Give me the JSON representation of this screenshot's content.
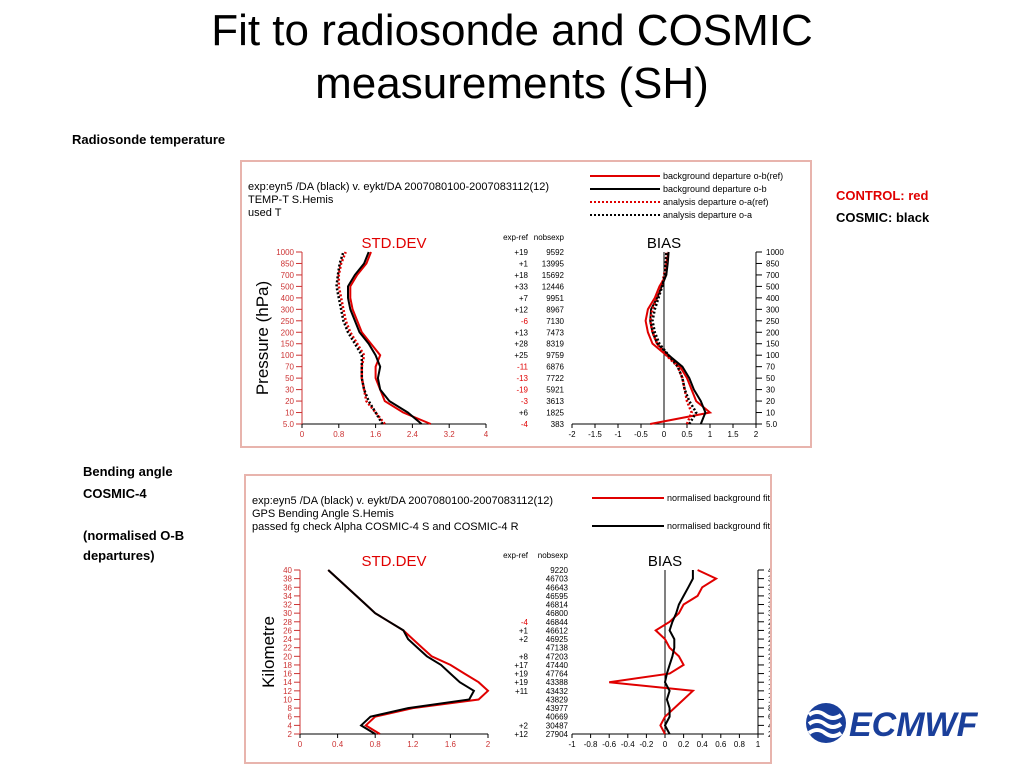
{
  "slide": {
    "title_line1": "Fit to radiosonde and COSMIC",
    "title_line2": "measurements (SH)",
    "radiosonde_label": "Radiosonde temperature",
    "bending_label_1": "Bending angle",
    "bending_label_2": "COSMIC-4",
    "bending_note_1": "(normalised O-B",
    "bending_note_2": "departures)",
    "control_label": "CONTROL: red",
    "cosmic_label": "COSMIC: black",
    "logo_text": "ECMWF",
    "colors": {
      "control": "#e00000",
      "cosmic": "#000000",
      "frame": "#e8b4ad"
    }
  },
  "chart_data": [
    {
      "type": "line",
      "header": [
        "exp:eyn5 /DA (black)  v. eykt/DA 2007080100-2007083112(12)",
        "TEMP-T  S.Hemis",
        "used T"
      ],
      "legend": [
        {
          "label": "background departure o-b(ref)",
          "color": "#e00000",
          "style": "solid"
        },
        {
          "label": "background departure o-b",
          "color": "#000000",
          "style": "solid"
        },
        {
          "label": "analysis departure o-a(ref)",
          "color": "#e00000",
          "style": "dotted"
        },
        {
          "label": "analysis departure o-a",
          "color": "#000000",
          "style": "dotted"
        }
      ],
      "ylabel": "Pressure (hPa)",
      "y_levels": [
        "5.0",
        "10",
        "20",
        "30",
        "50",
        "70",
        "100",
        "150",
        "200",
        "250",
        "300",
        "400",
        "500",
        "700",
        "850",
        "1000"
      ],
      "table_headers": [
        "exp-ref",
        "nobsexp"
      ],
      "exp_ref": [
        "-4",
        "+6",
        "-3",
        "-19",
        "-13",
        "-11",
        "+25",
        "+28",
        "+13",
        "-6",
        "+12",
        "+7",
        "+33",
        "+18",
        "+1",
        "+19"
      ],
      "nobsexp": [
        "383",
        "1825",
        "3613",
        "5921",
        "7722",
        "6876",
        "9759",
        "8319",
        "7473",
        "7130",
        "8967",
        "9951",
        "12446",
        "15692",
        "13995",
        "9592"
      ],
      "std_dev": {
        "title": "STD.DEV",
        "xlim": [
          0,
          4
        ],
        "xticks": [
          "0",
          "0.8",
          "1.6",
          "2.4",
          "3.2",
          "4"
        ],
        "series": [
          {
            "name": "background departure o-b(ref)",
            "values": [
              2.8,
              2.2,
              1.8,
              1.7,
              1.6,
              1.6,
              1.7,
              1.5,
              1.3,
              1.2,
              1.1,
              1.05,
              1.05,
              1.2,
              1.4,
              1.5
            ]
          },
          {
            "name": "background departure o-b",
            "values": [
              2.6,
              2.3,
              1.9,
              1.7,
              1.65,
              1.7,
              1.6,
              1.45,
              1.25,
              1.15,
              1.05,
              1.0,
              1.0,
              1.15,
              1.35,
              1.45
            ]
          },
          {
            "name": "analysis departure o-a(ref)",
            "values": [
              1.8,
              1.6,
              1.4,
              1.35,
              1.3,
              1.3,
              1.35,
              1.2,
              1.05,
              0.95,
              0.9,
              0.85,
              0.8,
              0.8,
              0.85,
              0.95
            ]
          },
          {
            "name": "analysis departure o-a",
            "values": [
              1.75,
              1.6,
              1.45,
              1.35,
              1.3,
              1.3,
              1.3,
              1.15,
              1.0,
              0.9,
              0.85,
              0.8,
              0.75,
              0.78,
              0.82,
              0.9
            ]
          }
        ]
      },
      "bias": {
        "title": "BIAS",
        "xlim": [
          -2,
          2
        ],
        "xticks": [
          "-2",
          "-1.5",
          "-1",
          "-0.5",
          "0",
          "0.5",
          "1",
          "1.5",
          "2"
        ],
        "series": [
          {
            "name": "background departure o-b(ref)",
            "values": [
              -0.3,
              1.0,
              0.7,
              0.6,
              0.5,
              0.35,
              0.05,
              -0.25,
              -0.35,
              -0.4,
              -0.35,
              -0.2,
              -0.1,
              0.05,
              0.05,
              0.1
            ]
          },
          {
            "name": "background departure o-b",
            "values": [
              0.8,
              0.9,
              0.8,
              0.65,
              0.55,
              0.4,
              0.1,
              -0.15,
              -0.25,
              -0.3,
              -0.28,
              -0.15,
              -0.05,
              0.05,
              0.08,
              0.1
            ]
          },
          {
            "name": "analysis departure o-a(ref)",
            "values": [
              0.5,
              0.6,
              0.5,
              0.45,
              0.4,
              0.3,
              0.05,
              -0.15,
              -0.25,
              -0.3,
              -0.25,
              -0.15,
              -0.05,
              0.0,
              0.05,
              0.05
            ]
          },
          {
            "name": "analysis departure o-a",
            "values": [
              0.55,
              0.7,
              0.55,
              0.45,
              0.4,
              0.3,
              0.1,
              -0.1,
              -0.2,
              -0.25,
              -0.2,
              -0.12,
              -0.04,
              0.02,
              0.04,
              0.05
            ]
          }
        ]
      }
    },
    {
      "type": "line",
      "header": [
        "exp:eyn5 /DA (black)  v. eykt/DA 2007080100-2007083112(12)",
        "GPS Bending Angle  S.Hemis",
        "passed fg check Alpha COSMIC-4 S and COSMIC-4 R"
      ],
      "legend": [
        {
          "label": "normalised background fit(ref)",
          "color": "#e00000",
          "style": "solid"
        },
        {
          "label": "normalised background fit",
          "color": "#000000",
          "style": "solid"
        }
      ],
      "ylabel": "Kilometre",
      "y_levels": [
        "2",
        "4",
        "6",
        "8",
        "10",
        "12",
        "14",
        "16",
        "18",
        "20",
        "22",
        "24",
        "26",
        "28",
        "30",
        "32",
        "34",
        "36",
        "38",
        "40"
      ],
      "table_headers": [
        "exp-ref",
        "nobsexp"
      ],
      "exp_ref": [
        "+12",
        "+2",
        "",
        "",
        "",
        "+11",
        "+19",
        "+19",
        "+17",
        "+8",
        "",
        "+2",
        "+1",
        "-4",
        "",
        "",
        "",
        "",
        "",
        ""
      ],
      "nobsexp": [
        "27904",
        "30487",
        "40669",
        "43977",
        "43829",
        "43432",
        "43388",
        "47764",
        "47440",
        "47203",
        "47138",
        "46925",
        "46612",
        "46844",
        "46800",
        "46814",
        "46595",
        "46643",
        "46703",
        "9220"
      ],
      "std_dev": {
        "title": "STD.DEV",
        "xlim": [
          0,
          2
        ],
        "xticks": [
          "0",
          "0.4",
          "0.8",
          "1.2",
          "1.6",
          "2"
        ],
        "series": [
          {
            "name": "normalised background fit(ref)",
            "values": [
              0.85,
              0.7,
              0.8,
              1.2,
              1.9,
              2.0,
              1.9,
              1.75,
              1.6,
              1.4,
              1.3,
              1.2,
              1.1,
              0.95,
              0.8,
              0.7,
              0.6,
              0.5,
              0.4,
              0.3
            ]
          },
          {
            "name": "normalised background fit",
            "values": [
              0.8,
              0.65,
              0.75,
              1.15,
              1.8,
              1.85,
              1.7,
              1.6,
              1.5,
              1.35,
              1.25,
              1.15,
              1.1,
              0.95,
              0.8,
              0.7,
              0.6,
              0.5,
              0.4,
              0.3
            ]
          }
        ]
      },
      "bias": {
        "title": "BIAS",
        "xlim": [
          -1,
          1
        ],
        "xticks": [
          "-1",
          "-0.8",
          "-0.6",
          "-0.4",
          "-0.2",
          "0",
          "0.2",
          "0.4",
          "0.6",
          "0.8",
          "1"
        ],
        "series": [
          {
            "name": "normalised background fit(ref)",
            "values": [
              0.0,
              -0.05,
              0.0,
              0.1,
              0.2,
              0.3,
              -0.6,
              0.05,
              0.2,
              0.15,
              0.05,
              0.0,
              -0.1,
              0.05,
              0.15,
              0.2,
              0.35,
              0.4,
              0.55,
              0.35
            ]
          },
          {
            "name": "normalised background fit",
            "values": [
              0.05,
              0.0,
              0.05,
              0.05,
              0.02,
              0.05,
              0.0,
              0.02,
              0.05,
              0.08,
              0.1,
              0.1,
              0.05,
              0.08,
              0.12,
              0.15,
              0.2,
              0.25,
              0.3,
              0.3
            ]
          }
        ]
      }
    }
  ]
}
